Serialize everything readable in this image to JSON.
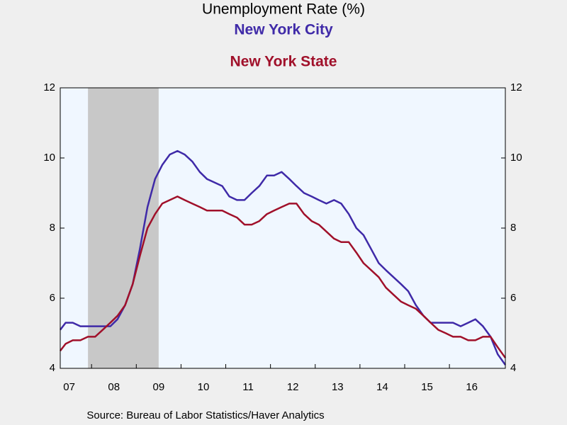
{
  "chart_data": {
    "type": "line",
    "title": "Unemployment Rate (%)",
    "source": "Source:  Bureau of Labor Statistics/Haver Analytics",
    "x": [
      2007.25,
      2007.42,
      2007.58,
      2007.75,
      2007.92,
      2008.08,
      2008.25,
      2008.42,
      2008.58,
      2008.75,
      2008.92,
      2009.08,
      2009.25,
      2009.42,
      2009.58,
      2009.75,
      2009.92,
      2010.08,
      2010.25,
      2010.42,
      2010.58,
      2010.75,
      2010.92,
      2011.08,
      2011.25,
      2011.42,
      2011.58,
      2011.75,
      2011.92,
      2012.08,
      2012.25,
      2012.42,
      2012.58,
      2012.75,
      2012.92,
      2013.08,
      2013.25,
      2013.42,
      2013.58,
      2013.75,
      2013.92,
      2014.08,
      2014.25,
      2014.42,
      2014.58,
      2014.75,
      2014.92,
      2015.08,
      2015.25,
      2015.42,
      2015.58,
      2015.75,
      2015.92,
      2016.08,
      2016.25,
      2016.42,
      2016.58,
      2016.75,
      2016.92,
      2017.08,
      2017.25
    ],
    "series": [
      {
        "name": "New York City",
        "color": "#3f2aa8",
        "values": [
          5.1,
          5.3,
          5.3,
          5.2,
          5.2,
          5.2,
          5.2,
          5.2,
          5.4,
          5.8,
          6.4,
          7.4,
          8.6,
          9.4,
          9.8,
          10.1,
          10.2,
          10.1,
          9.9,
          9.6,
          9.4,
          9.3,
          9.2,
          8.9,
          8.8,
          8.8,
          9.0,
          9.2,
          9.5,
          9.5,
          9.6,
          9.4,
          9.2,
          9.0,
          8.9,
          8.8,
          8.7,
          8.8,
          8.7,
          8.4,
          8.0,
          7.8,
          7.4,
          7.0,
          6.8,
          6.6,
          6.4,
          6.2,
          5.8,
          5.5,
          5.3,
          5.3,
          5.3,
          5.3,
          5.2,
          5.3,
          5.4,
          5.2,
          4.9,
          4.4,
          4.1
        ]
      },
      {
        "name": "New York State",
        "color": "#a0102a",
        "values": [
          4.5,
          4.7,
          4.8,
          4.8,
          4.9,
          4.9,
          5.1,
          5.3,
          5.5,
          5.8,
          6.4,
          7.2,
          8.0,
          8.4,
          8.7,
          8.8,
          8.9,
          8.8,
          8.7,
          8.6,
          8.5,
          8.5,
          8.5,
          8.4,
          8.3,
          8.1,
          8.1,
          8.2,
          8.4,
          8.5,
          8.6,
          8.7,
          8.7,
          8.4,
          8.2,
          8.1,
          7.9,
          7.7,
          7.6,
          7.6,
          7.3,
          7.0,
          6.8,
          6.6,
          6.3,
          6.1,
          5.9,
          5.8,
          5.7,
          5.5,
          5.3,
          5.1,
          5.0,
          4.9,
          4.9,
          4.8,
          4.8,
          4.9,
          4.9,
          4.6,
          4.3
        ]
      }
    ],
    "shading": {
      "x": [
        2007.92,
        2009.5
      ],
      "color": "#c8c8c8"
    },
    "xlim": [
      2007.3,
      2017.25
    ],
    "xticks": [
      {
        "value": 2007,
        "label": "07"
      },
      {
        "value": 2008,
        "label": "08"
      },
      {
        "value": 2009,
        "label": "09"
      },
      {
        "value": 2010,
        "label": "10"
      },
      {
        "value": 2011,
        "label": "11"
      },
      {
        "value": 2012,
        "label": "12"
      },
      {
        "value": 2013,
        "label": "13"
      },
      {
        "value": 2014,
        "label": "14"
      },
      {
        "value": 2015,
        "label": "15"
      },
      {
        "value": 2016,
        "label": "16"
      }
    ],
    "ylim": [
      4,
      12
    ],
    "yticks": [
      4,
      6,
      8,
      10,
      12
    ]
  }
}
